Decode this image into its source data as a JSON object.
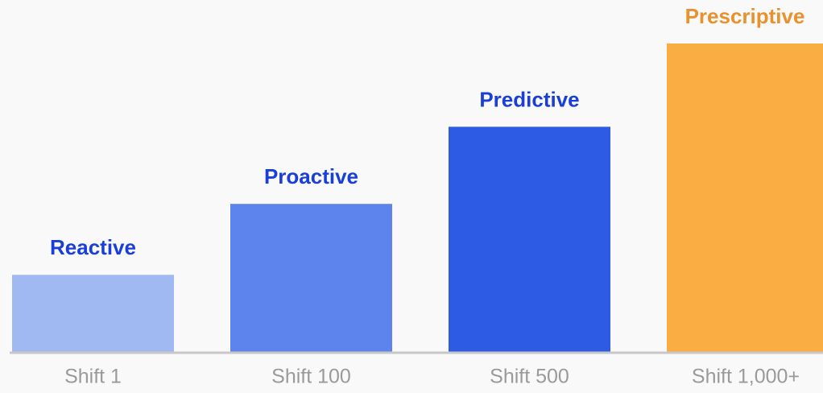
{
  "chart_data": {
    "type": "bar",
    "categories": [
      "Shift 1",
      "Shift 100",
      "Shift 500",
      "Shift 1,000+"
    ],
    "bar_labels": [
      "Reactive",
      "Proactive",
      "Predictive",
      "Prescriptive"
    ],
    "values": [
      25,
      48,
      73,
      100
    ],
    "colors": [
      "#a1b9f2",
      "#5d83ed",
      "#2d5be3",
      "#f9ad42"
    ],
    "label_colors": [
      "#1a3fd6",
      "#1a3fd6",
      "#1a3fd6",
      "#e8912d"
    ],
    "ylim": [
      0,
      100
    ]
  }
}
